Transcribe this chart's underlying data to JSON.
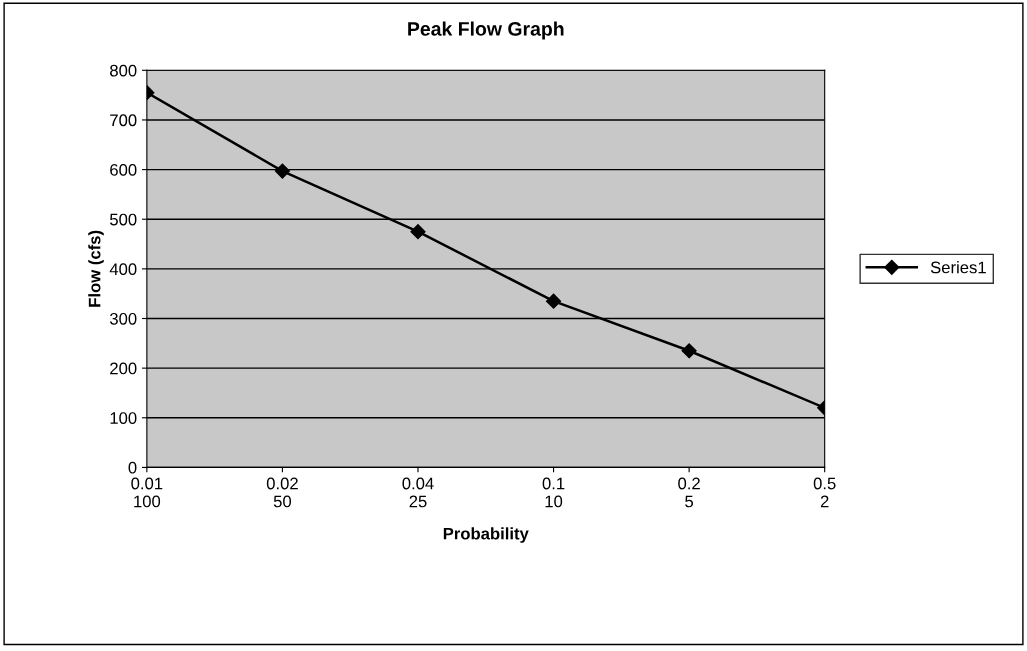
{
  "chart_data": {
    "type": "line",
    "title": "Peak Flow Graph",
    "xlabel": "Probability",
    "ylabel": "Flow (cfs)",
    "categories": [
      "0.01\n100",
      "0.02\n50",
      "0.04\n25",
      "0.1\n10",
      "0.2\n5",
      "0.5\n2"
    ],
    "series": [
      {
        "name": "Series1",
        "color": "#000000",
        "values": [
          755,
          597,
          475,
          335,
          235,
          120
        ]
      }
    ],
    "ylim": [
      0,
      800
    ],
    "yticks": [
      0,
      100,
      200,
      300,
      400,
      500,
      600,
      700,
      800
    ],
    "grid": "y",
    "legend": "right",
    "marker": "diamond",
    "line_style": "solid"
  }
}
